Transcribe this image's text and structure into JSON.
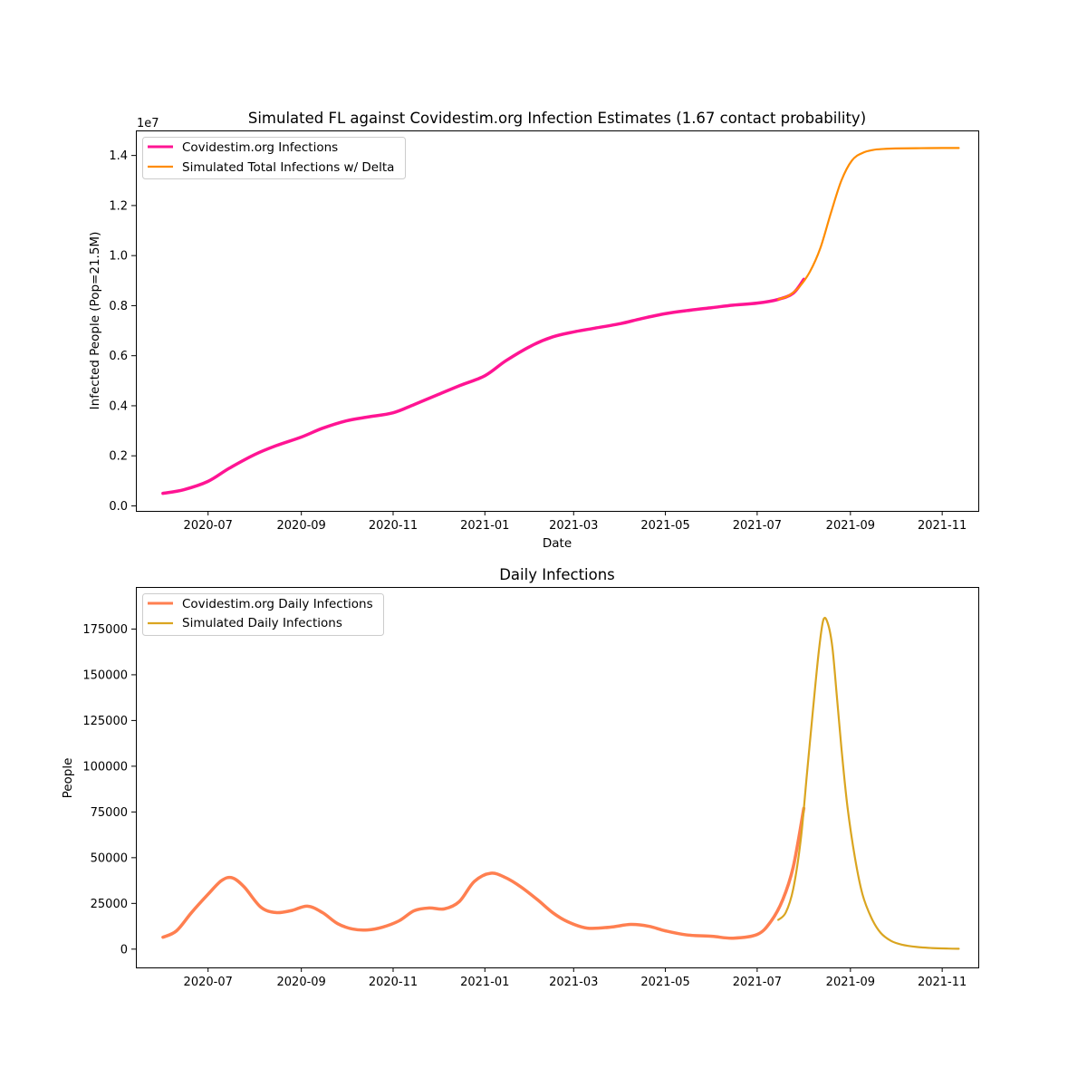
{
  "chart_data": [
    {
      "type": "line",
      "title": "Simulated FL against Covidestim.org Infection Estimates (1.67 contact probability)",
      "xlabel": "Date",
      "ylabel": "Infected People (Pop=21.5M)",
      "y_offset_label": "1e7",
      "xlim": [
        "2020-05-14",
        "2021-11-25"
      ],
      "ylim": [
        -0.02,
        1.5
      ],
      "x_ticks": [
        "2020-07-01",
        "2020-09-01",
        "2020-11-01",
        "2021-01-01",
        "2021-03-01",
        "2021-05-01",
        "2021-07-01",
        "2021-09-01",
        "2021-11-01"
      ],
      "x_tick_labels": [
        "2020-07",
        "2020-09",
        "2020-11",
        "2021-01",
        "2021-03",
        "2021-05",
        "2021-07",
        "2021-09",
        "2021-11"
      ],
      "y_ticks": [
        0.0,
        0.2,
        0.4,
        0.6,
        0.8,
        1.0,
        1.2,
        1.4
      ],
      "y_tick_labels": [
        "0.0",
        "0.2",
        "0.4",
        "0.6",
        "0.8",
        "1.0",
        "1.2",
        "1.4"
      ],
      "grid": false,
      "legend_position": "top-left",
      "series": [
        {
          "name": "Covidestim.org Infections",
          "color": "#ff1493",
          "x": [
            "2020-06-01",
            "2020-06-15",
            "2020-07-01",
            "2020-07-15",
            "2020-08-01",
            "2020-08-15",
            "2020-09-01",
            "2020-09-15",
            "2020-10-01",
            "2020-10-15",
            "2020-11-01",
            "2020-11-15",
            "2020-12-01",
            "2020-12-15",
            "2021-01-01",
            "2021-01-15",
            "2021-02-01",
            "2021-02-15",
            "2021-03-01",
            "2021-03-15",
            "2021-04-01",
            "2021-04-15",
            "2021-05-01",
            "2021-05-15",
            "2021-06-01",
            "2021-06-15",
            "2021-07-01",
            "2021-07-15",
            "2021-07-25",
            "2021-08-01"
          ],
          "y": [
            0.05,
            0.065,
            0.098,
            0.15,
            0.205,
            0.24,
            0.275,
            0.31,
            0.34,
            0.355,
            0.372,
            0.405,
            0.445,
            0.48,
            0.52,
            0.58,
            0.64,
            0.675,
            0.695,
            0.71,
            0.728,
            0.748,
            0.768,
            0.78,
            0.792,
            0.802,
            0.81,
            0.825,
            0.85,
            0.905
          ]
        },
        {
          "name": "Simulated Total Infections w/ Delta",
          "color": "#ff8c00",
          "x": [
            "2021-07-15",
            "2021-07-22",
            "2021-07-29",
            "2021-08-05",
            "2021-08-12",
            "2021-08-19",
            "2021-08-26",
            "2021-09-02",
            "2021-09-09",
            "2021-09-16",
            "2021-09-23",
            "2021-10-01",
            "2021-10-15",
            "2021-11-01",
            "2021-11-12"
          ],
          "y": [
            0.825,
            0.84,
            0.875,
            0.935,
            1.03,
            1.17,
            1.3,
            1.38,
            1.41,
            1.422,
            1.426,
            1.428,
            1.429,
            1.43,
            1.43
          ]
        }
      ]
    },
    {
      "type": "line",
      "title": "Daily Infections",
      "xlabel": "",
      "ylabel": "People",
      "xlim": [
        "2020-05-14",
        "2021-11-25"
      ],
      "ylim": [
        -10000,
        198000
      ],
      "x_ticks": [
        "2020-07-01",
        "2020-09-01",
        "2020-11-01",
        "2021-01-01",
        "2021-03-01",
        "2021-05-01",
        "2021-07-01",
        "2021-09-01",
        "2021-11-01"
      ],
      "x_tick_labels": [
        "2020-07",
        "2020-09",
        "2020-11",
        "2021-01",
        "2021-03",
        "2021-05",
        "2021-07",
        "2021-09",
        "2021-11"
      ],
      "y_ticks": [
        0,
        25000,
        50000,
        75000,
        100000,
        125000,
        150000,
        175000
      ],
      "y_tick_labels": [
        "0",
        "25000",
        "50000",
        "75000",
        "100000",
        "125000",
        "150000",
        "175000"
      ],
      "grid": false,
      "legend_position": "top-left",
      "series": [
        {
          "name": "Covidestim.org Daily Infections",
          "color": "#ff7f50",
          "x": [
            "2020-06-01",
            "2020-06-10",
            "2020-06-20",
            "2020-07-01",
            "2020-07-10",
            "2020-07-17",
            "2020-07-25",
            "2020-08-05",
            "2020-08-15",
            "2020-08-25",
            "2020-09-05",
            "2020-09-15",
            "2020-09-25",
            "2020-10-05",
            "2020-10-15",
            "2020-10-25",
            "2020-11-05",
            "2020-11-15",
            "2020-11-25",
            "2020-12-05",
            "2020-12-15",
            "2020-12-25",
            "2021-01-05",
            "2021-01-15",
            "2021-01-25",
            "2021-02-05",
            "2021-02-15",
            "2021-02-25",
            "2021-03-10",
            "2021-03-25",
            "2021-04-08",
            "2021-04-20",
            "2021-05-01",
            "2021-05-15",
            "2021-06-01",
            "2021-06-15",
            "2021-07-01",
            "2021-07-10",
            "2021-07-18",
            "2021-07-25",
            "2021-08-01"
          ],
          "y": [
            6500,
            10000,
            20000,
            30000,
            37500,
            39000,
            34000,
            23000,
            20000,
            21000,
            23500,
            20000,
            14000,
            11000,
            10500,
            12000,
            15500,
            21000,
            22500,
            22000,
            26000,
            37000,
            41500,
            39000,
            34000,
            27000,
            20000,
            15000,
            11500,
            12000,
            13500,
            12500,
            10000,
            7800,
            7000,
            6000,
            8000,
            15000,
            27000,
            45000,
            77000
          ]
        },
        {
          "name": "Simulated Daily Infections",
          "color": "#daa520",
          "x": [
            "2021-07-15",
            "2021-07-20",
            "2021-07-25",
            "2021-07-30",
            "2021-08-03",
            "2021-08-07",
            "2021-08-11",
            "2021-08-14",
            "2021-08-17",
            "2021-08-20",
            "2021-08-23",
            "2021-08-26",
            "2021-08-30",
            "2021-09-04",
            "2021-09-09",
            "2021-09-15",
            "2021-09-21",
            "2021-09-28",
            "2021-10-05",
            "2021-10-15",
            "2021-10-25",
            "2021-11-05",
            "2021-11-12"
          ],
          "y": [
            16000,
            20000,
            33000,
            60000,
            95000,
            130000,
            163000,
            180000,
            178000,
            165000,
            138000,
            110000,
            78000,
            50000,
            30000,
            17000,
            9000,
            4500,
            2500,
            1200,
            600,
            300,
            200
          ]
        }
      ]
    }
  ]
}
